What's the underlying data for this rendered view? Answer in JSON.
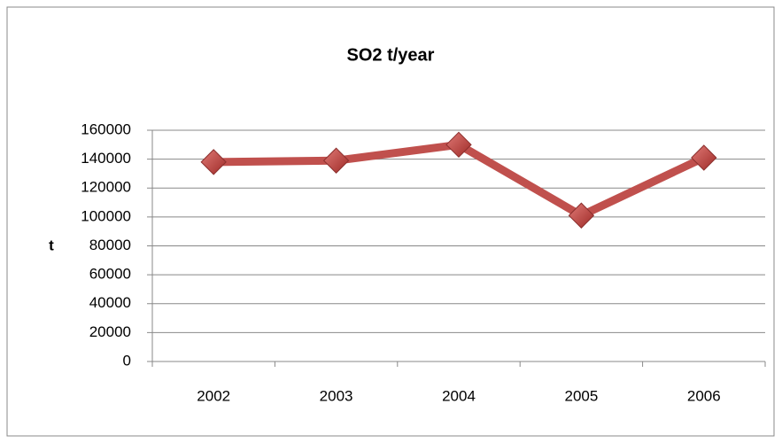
{
  "chart_data": {
    "type": "line",
    "title": "SO2 t/year",
    "y_label": "t",
    "categories": [
      "2002",
      "2003",
      "2004",
      "2005",
      "2006"
    ],
    "series": [
      {
        "name": "SO2",
        "color": "#c0504d",
        "values": [
          138000,
          139000,
          150000,
          101000,
          141000
        ]
      }
    ],
    "ylim": [
      0,
      160000
    ],
    "yticks": [
      0,
      20000,
      40000,
      60000,
      80000,
      100000,
      120000,
      140000,
      160000
    ],
    "grid": true,
    "legend": false
  }
}
